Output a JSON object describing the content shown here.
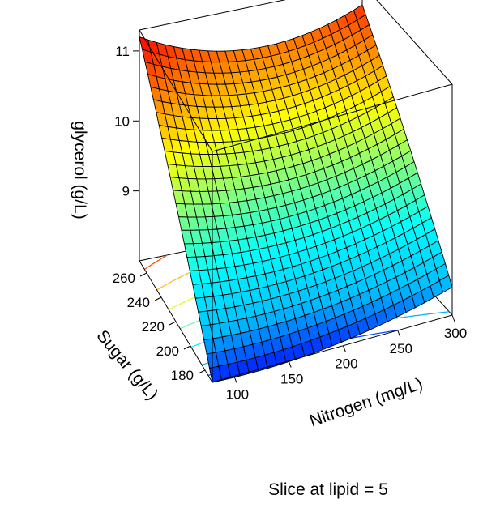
{
  "chart_data": {
    "type": "surface3d",
    "zlabel": "glycerol (g/L)",
    "ylabel": "Sugar (g/L)",
    "xlabel": "Nitrogen (mg/L)",
    "caption": "Slice at lipid = 5",
    "x_ticks": [
      "100",
      "150",
      "200",
      "250",
      "300"
    ],
    "y_ticks": [
      "180",
      "200",
      "220",
      "240",
      "260"
    ],
    "z_ticks": [
      "9",
      "10",
      "11"
    ],
    "xlim": [
      80,
      300
    ],
    "ylim": [
      170,
      270
    ],
    "zlim": [
      8.0,
      11.3
    ],
    "surface_corners": {
      "nitrogen_80_sugar_170": 8.0,
      "nitrogen_300_sugar_170": 8.4,
      "nitrogen_80_sugar_270": 11.2,
      "nitrogen_300_sugar_270": 11.0
    },
    "grid_resolution": 26,
    "colormap": [
      "#0000ff",
      "#00bfff",
      "#00ffff",
      "#7fff7f",
      "#ffff00",
      "#ff7f00",
      "#ff0000"
    ]
  }
}
